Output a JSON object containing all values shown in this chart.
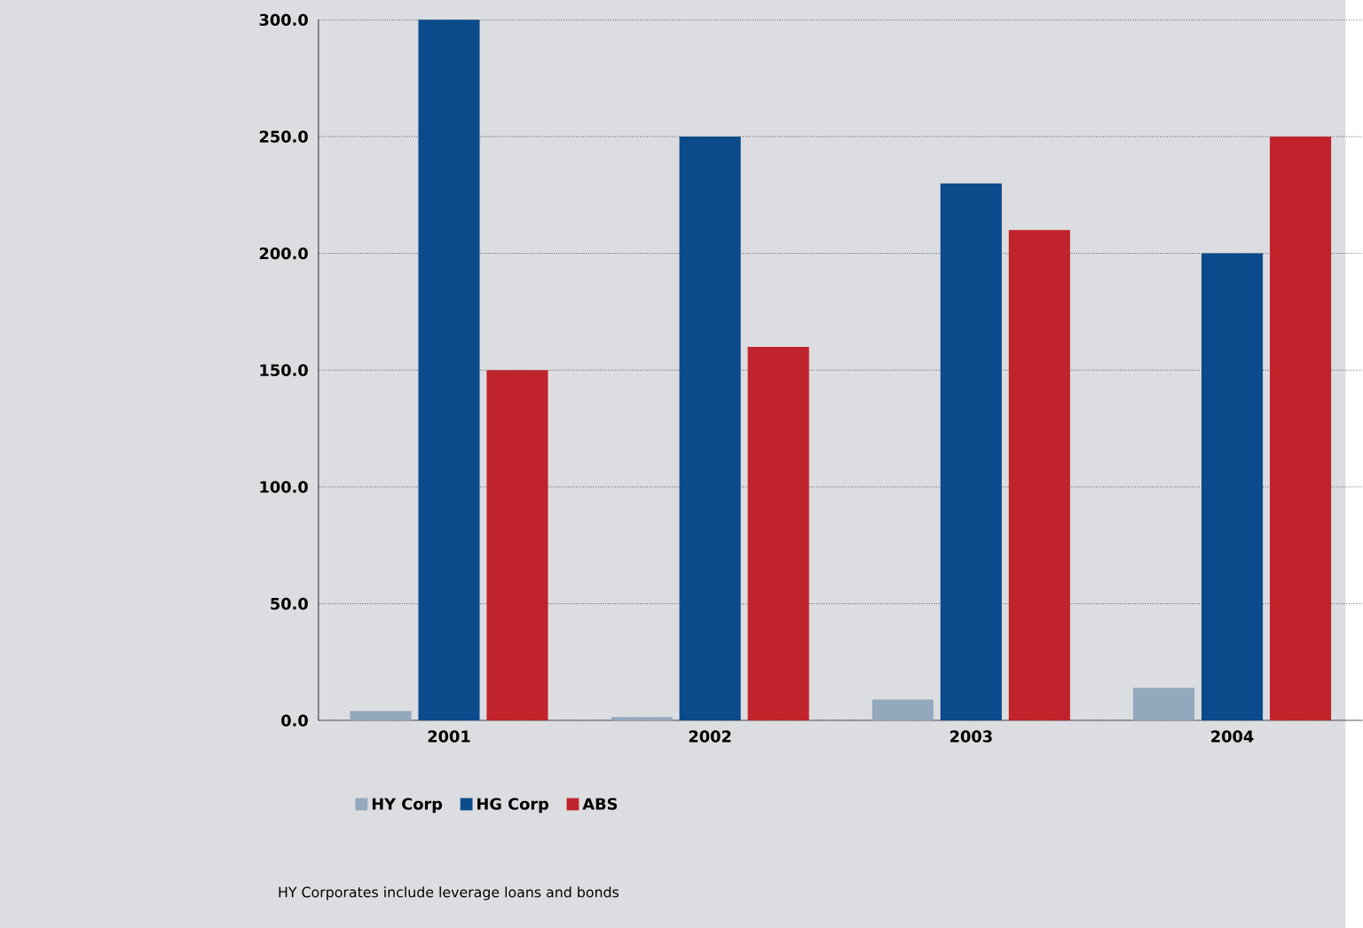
{
  "chart_data": {
    "type": "bar",
    "categories": [
      "2001",
      "2002",
      "2003",
      "2004"
    ],
    "series": [
      {
        "name": "HY Corp",
        "color": "#93a8bc",
        "values": [
          4,
          1.5,
          9,
          14
        ]
      },
      {
        "name": "HG Corp",
        "color": "#0b4a8b",
        "values": [
          300,
          250,
          230,
          200
        ]
      },
      {
        "name": "ABS",
        "color": "#c0232b",
        "values": [
          150,
          160,
          210,
          250
        ]
      }
    ],
    "ylim": [
      0,
      300
    ],
    "yticks": [
      {
        "value": 0,
        "label": "0.0"
      },
      {
        "value": 50,
        "label": "50.0"
      },
      {
        "value": 100,
        "label": "100.0"
      },
      {
        "value": 150,
        "label": "150.0"
      },
      {
        "value": 200,
        "label": "200.0"
      },
      {
        "value": 250,
        "label": "250.0"
      },
      {
        "value": 300,
        "label": "300.0"
      }
    ],
    "grid": "y",
    "legend": "bottom left",
    "annotations": [
      "HY Corporates include leverage loans and bonds"
    ]
  }
}
